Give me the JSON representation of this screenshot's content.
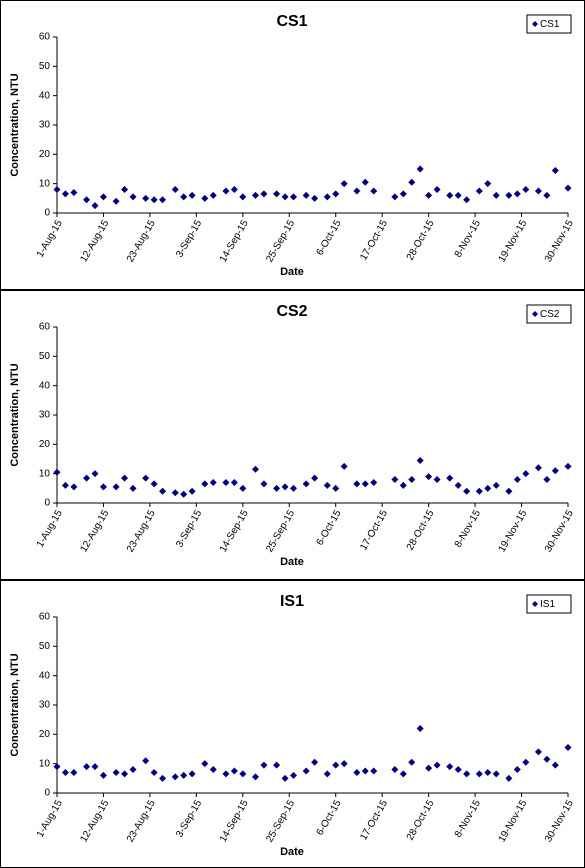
{
  "chart_data": [
    {
      "type": "scatter",
      "title": "CS1",
      "x_label": "Date",
      "y_label": "Concentration, NTU",
      "legend": "upper right",
      "x": [
        "2015-08-01",
        "2015-08-03",
        "2015-08-05",
        "2015-08-08",
        "2015-08-10",
        "2015-08-12",
        "2015-08-15",
        "2015-08-17",
        "2015-08-19",
        "2015-08-22",
        "2015-08-24",
        "2015-08-26",
        "2015-08-29",
        "2015-08-31",
        "2015-09-02",
        "2015-09-05",
        "2015-09-07",
        "2015-09-10",
        "2015-09-12",
        "2015-09-14",
        "2015-09-17",
        "2015-09-19",
        "2015-09-22",
        "2015-09-24",
        "2015-09-26",
        "2015-09-29",
        "2015-10-01",
        "2015-10-04",
        "2015-10-06",
        "2015-10-08",
        "2015-10-11",
        "2015-10-13",
        "2015-10-15",
        "2015-10-20",
        "2015-10-22",
        "2015-10-24",
        "2015-10-26",
        "2015-10-28",
        "2015-10-30",
        "2015-11-02",
        "2015-11-04",
        "2015-11-06",
        "2015-11-09",
        "2015-11-11",
        "2015-11-13",
        "2015-11-16",
        "2015-11-18",
        "2015-11-20",
        "2015-11-23",
        "2015-11-25",
        "2015-11-27",
        "2015-11-30"
      ],
      "series": [
        {
          "name": "CS1",
          "color": "#000080",
          "values": [
            8,
            6.5,
            7,
            4.5,
            2.5,
            5.5,
            4,
            8,
            5.5,
            5,
            4.5,
            4.5,
            8,
            5.5,
            6,
            5,
            6,
            7.5,
            8,
            5.5,
            6,
            6.5,
            6.5,
            5.5,
            5.5,
            6,
            5,
            5.5,
            6.5,
            10,
            7.5,
            10.5,
            7.5,
            5.5,
            6.5,
            10.5,
            15,
            6,
            8,
            6,
            6,
            4.5,
            7.5,
            10,
            6,
            6,
            6.5,
            8,
            7.5,
            6,
            14.5,
            8.5
          ]
        }
      ],
      "xlim": [
        "2015-08-01",
        "2015-11-30"
      ],
      "xticks": [
        {
          "value": "2015-08-01",
          "label": "1-Aug-15"
        },
        {
          "value": "2015-08-12",
          "label": "12-Aug-15"
        },
        {
          "value": "2015-08-23",
          "label": "23-Aug-15"
        },
        {
          "value": "2015-09-03",
          "label": "3-Sep-15"
        },
        {
          "value": "2015-09-14",
          "label": "14-Sep-15"
        },
        {
          "value": "2015-09-25",
          "label": "25-Sep-15"
        },
        {
          "value": "2015-10-06",
          "label": "6-Oct-15"
        },
        {
          "value": "2015-10-17",
          "label": "17-Oct-15"
        },
        {
          "value": "2015-10-28",
          "label": "28-Oct-15"
        },
        {
          "value": "2015-11-08",
          "label": "8-Nov-15"
        },
        {
          "value": "2015-11-19",
          "label": "19-Nov-15"
        },
        {
          "value": "2015-11-30",
          "label": "30-Nov-15"
        }
      ],
      "ylim": [
        0,
        60
      ],
      "yticks": [
        0,
        10,
        20,
        30,
        40,
        50,
        60
      ]
    },
    {
      "type": "scatter",
      "title": "CS2",
      "x_label": "Date",
      "y_label": "Concentration, NTU",
      "legend": "upper right",
      "x": [
        "2015-08-01",
        "2015-08-03",
        "2015-08-05",
        "2015-08-08",
        "2015-08-10",
        "2015-08-12",
        "2015-08-15",
        "2015-08-17",
        "2015-08-19",
        "2015-08-22",
        "2015-08-24",
        "2015-08-26",
        "2015-08-29",
        "2015-08-31",
        "2015-09-02",
        "2015-09-05",
        "2015-09-07",
        "2015-09-10",
        "2015-09-12",
        "2015-09-14",
        "2015-09-17",
        "2015-09-19",
        "2015-09-22",
        "2015-09-24",
        "2015-09-26",
        "2015-09-29",
        "2015-10-01",
        "2015-10-04",
        "2015-10-06",
        "2015-10-08",
        "2015-10-11",
        "2015-10-13",
        "2015-10-15",
        "2015-10-20",
        "2015-10-22",
        "2015-10-24",
        "2015-10-26",
        "2015-10-28",
        "2015-10-30",
        "2015-11-02",
        "2015-11-04",
        "2015-11-06",
        "2015-11-09",
        "2015-11-11",
        "2015-11-13",
        "2015-11-16",
        "2015-11-18",
        "2015-11-20",
        "2015-11-23",
        "2015-11-25",
        "2015-11-27",
        "2015-11-30"
      ],
      "series": [
        {
          "name": "CS2",
          "color": "#000080",
          "values": [
            10.5,
            6,
            5.5,
            8.5,
            10,
            5.5,
            5.5,
            8.5,
            5,
            8.5,
            6.5,
            4,
            3.5,
            3,
            4,
            6.5,
            7,
            7,
            7,
            5,
            11.5,
            6.5,
            5,
            5.5,
            5,
            6.5,
            8.5,
            6,
            5,
            12.5,
            6.5,
            6.5,
            7,
            8,
            6,
            8,
            14.5,
            9,
            8,
            8.5,
            6,
            4,
            4,
            5,
            6,
            4,
            8,
            10,
            12,
            8,
            11,
            12.5
          ]
        }
      ],
      "xlim": [
        "2015-08-01",
        "2015-11-30"
      ],
      "xticks": [
        {
          "value": "2015-08-01",
          "label": "1-Aug-15"
        },
        {
          "value": "2015-08-12",
          "label": "12-Aug-15"
        },
        {
          "value": "2015-08-23",
          "label": "23-Aug-15"
        },
        {
          "value": "2015-09-03",
          "label": "3-Sep-15"
        },
        {
          "value": "2015-09-14",
          "label": "14-Sep-15"
        },
        {
          "value": "2015-09-25",
          "label": "25-Sep-15"
        },
        {
          "value": "2015-10-06",
          "label": "6-Oct-15"
        },
        {
          "value": "2015-10-17",
          "label": "17-Oct-15"
        },
        {
          "value": "2015-10-28",
          "label": "28-Oct-15"
        },
        {
          "value": "2015-11-08",
          "label": "8-Nov-15"
        },
        {
          "value": "2015-11-19",
          "label": "19-Nov-15"
        },
        {
          "value": "2015-11-30",
          "label": "30-Nov-15"
        }
      ],
      "ylim": [
        0,
        60
      ],
      "yticks": [
        0,
        10,
        20,
        30,
        40,
        50,
        60
      ]
    },
    {
      "type": "scatter",
      "title": "IS1",
      "x_label": "Date",
      "y_label": "Concentration, NTU",
      "legend": "upper right",
      "x": [
        "2015-08-01",
        "2015-08-03",
        "2015-08-05",
        "2015-08-08",
        "2015-08-10",
        "2015-08-12",
        "2015-08-15",
        "2015-08-17",
        "2015-08-19",
        "2015-08-22",
        "2015-08-24",
        "2015-08-26",
        "2015-08-29",
        "2015-08-31",
        "2015-09-02",
        "2015-09-05",
        "2015-09-07",
        "2015-09-10",
        "2015-09-12",
        "2015-09-14",
        "2015-09-17",
        "2015-09-19",
        "2015-09-22",
        "2015-09-24",
        "2015-09-26",
        "2015-09-29",
        "2015-10-01",
        "2015-10-04",
        "2015-10-06",
        "2015-10-08",
        "2015-10-11",
        "2015-10-13",
        "2015-10-15",
        "2015-10-20",
        "2015-10-22",
        "2015-10-24",
        "2015-10-26",
        "2015-10-28",
        "2015-10-30",
        "2015-11-02",
        "2015-11-04",
        "2015-11-06",
        "2015-11-09",
        "2015-11-11",
        "2015-11-13",
        "2015-11-16",
        "2015-11-18",
        "2015-11-20",
        "2015-11-23",
        "2015-11-25",
        "2015-11-27",
        "2015-11-30"
      ],
      "series": [
        {
          "name": "IS1",
          "color": "#000080",
          "values": [
            9,
            7,
            7,
            9,
            9,
            6,
            7,
            6.5,
            8,
            11,
            7,
            5,
            5.5,
            6,
            6.5,
            10,
            8,
            6.5,
            7.5,
            6.5,
            5.5,
            9.5,
            9.5,
            5,
            6,
            7.5,
            10.5,
            6.5,
            9.5,
            10,
            7,
            7.5,
            7.5,
            8,
            6.5,
            10.5,
            22,
            8.5,
            9.5,
            9,
            8,
            6.5,
            6.5,
            7,
            6.5,
            5,
            8,
            10.5,
            14,
            11.5,
            9.5,
            15.5
          ]
        }
      ],
      "xlim": [
        "2015-08-01",
        "2015-11-30"
      ],
      "xticks": [
        {
          "value": "2015-08-01",
          "label": "1-Aug-15"
        },
        {
          "value": "2015-08-12",
          "label": "12-Aug-15"
        },
        {
          "value": "2015-08-23",
          "label": "23-Aug-15"
        },
        {
          "value": "2015-09-03",
          "label": "3-Sep-15"
        },
        {
          "value": "2015-09-14",
          "label": "14-Sep-15"
        },
        {
          "value": "2015-09-25",
          "label": "25-Sep-15"
        },
        {
          "value": "2015-10-06",
          "label": "6-Oct-15"
        },
        {
          "value": "2015-10-17",
          "label": "17-Oct-15"
        },
        {
          "value": "2015-10-28",
          "label": "28-Oct-15"
        },
        {
          "value": "2015-11-08",
          "label": "8-Nov-15"
        },
        {
          "value": "2015-11-19",
          "label": "19-Nov-15"
        },
        {
          "value": "2015-11-30",
          "label": "30-Nov-15"
        }
      ],
      "ylim": [
        0,
        60
      ],
      "yticks": [
        0,
        10,
        20,
        30,
        40,
        50,
        60
      ]
    }
  ]
}
